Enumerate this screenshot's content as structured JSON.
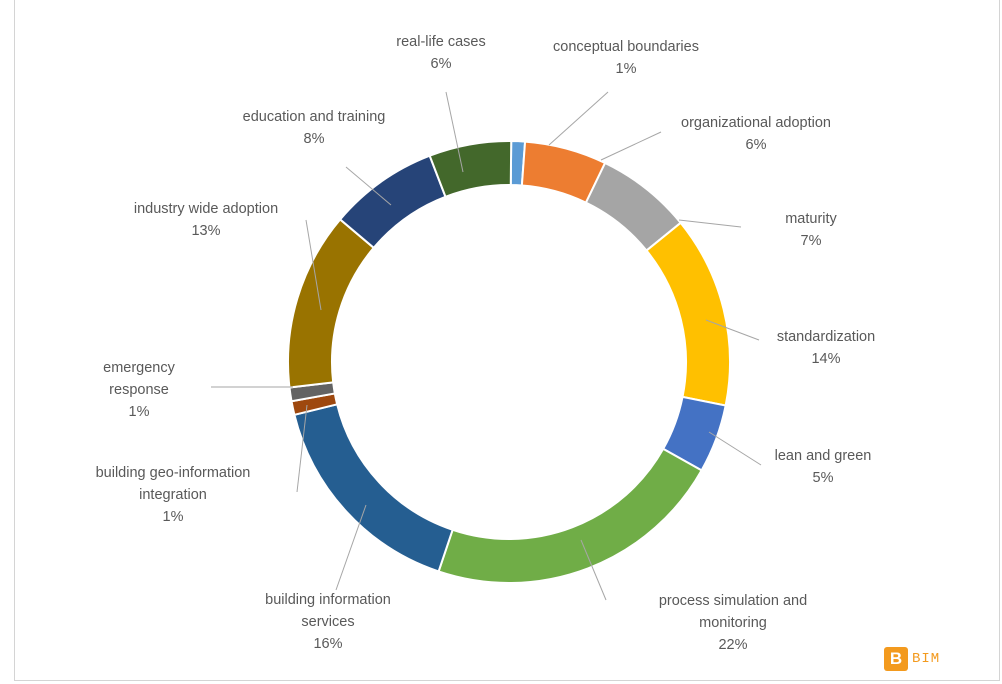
{
  "chart_data": {
    "type": "pie",
    "title": "",
    "slices": [
      {
        "name": "conceptual boundaries",
        "value": 1,
        "pct": "1%",
        "color": "#5b9bd5"
      },
      {
        "name": "organizational adoption",
        "value": 6,
        "pct": "6%",
        "color": "#ed7d31"
      },
      {
        "name": "maturity",
        "value": 7,
        "pct": "7%",
        "color": "#a5a5a5"
      },
      {
        "name": "standardization",
        "value": 14,
        "pct": "14%",
        "color": "#ffc000"
      },
      {
        "name": "lean and green",
        "value": 5,
        "pct": "5%",
        "color": "#4472c4"
      },
      {
        "name": "process simulation and monitoring",
        "value": 22,
        "pct": "22%",
        "color": "#70ad47"
      },
      {
        "name": "building information services",
        "value": 16,
        "pct": "16%",
        "color": "#255e91"
      },
      {
        "name": "building geo-information integration",
        "value": 1,
        "pct": "1%",
        "color": "#9e480e"
      },
      {
        "name": "emergency response",
        "value": 1,
        "pct": "1%",
        "color": "#636363"
      },
      {
        "name": "industry wide adoption",
        "value": 13,
        "pct": "13%",
        "color": "#997300"
      },
      {
        "name": "education and training",
        "value": 8,
        "pct": "8%",
        "color": "#264478"
      },
      {
        "name": "real-life cases",
        "value": 6,
        "pct": "6%",
        "color": "#43682b"
      }
    ],
    "style": "doughnut",
    "data_labels": "outside with leader lines"
  },
  "watermark": {
    "logo_letter": "B",
    "text": "BIM",
    "color": "#f39a1e"
  }
}
